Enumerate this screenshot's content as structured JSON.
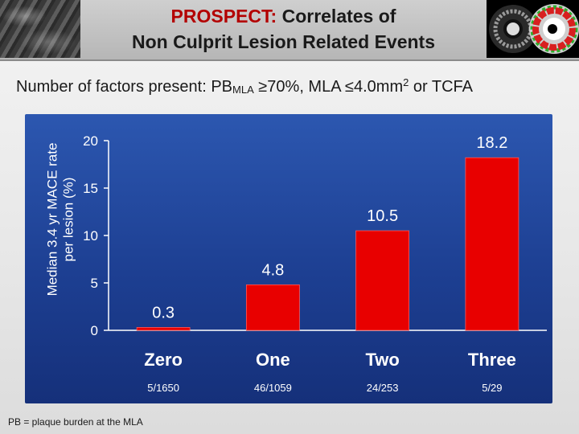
{
  "slide": {
    "title_accent": "PROSPECT:",
    "title_rest": " Correlates of",
    "title_line2": "Non Culprit Lesion Related Events",
    "subtitle": {
      "prefix": "Number of factors present: PB",
      "sub": "MLA",
      "middle": " ≥70%, MLA ≤4.0mm",
      "sup": "2",
      "suffix": " or TCFA"
    },
    "footnote": "PB = plaque burden at the MLA"
  },
  "chart_data": {
    "type": "bar",
    "title": "",
    "ylabel_line1": "Median 3.4 yr MACE rate",
    "ylabel_line2": "per lesion (%)",
    "xlabel": "",
    "categories": [
      "Zero",
      "One",
      "Two",
      "Three"
    ],
    "values": [
      0.3,
      4.8,
      10.5,
      18.2
    ],
    "value_labels": [
      "0.3",
      "4.8",
      "10.5",
      "18.2"
    ],
    "counts": [
      "5/1650",
      "46/1059",
      "24/253",
      "5/29"
    ],
    "ylim": [
      0,
      20
    ],
    "yticks": [
      0,
      5,
      10,
      15,
      20
    ],
    "grid": false,
    "bar_color": "#e80000",
    "panel_color": "#1f45a0"
  }
}
